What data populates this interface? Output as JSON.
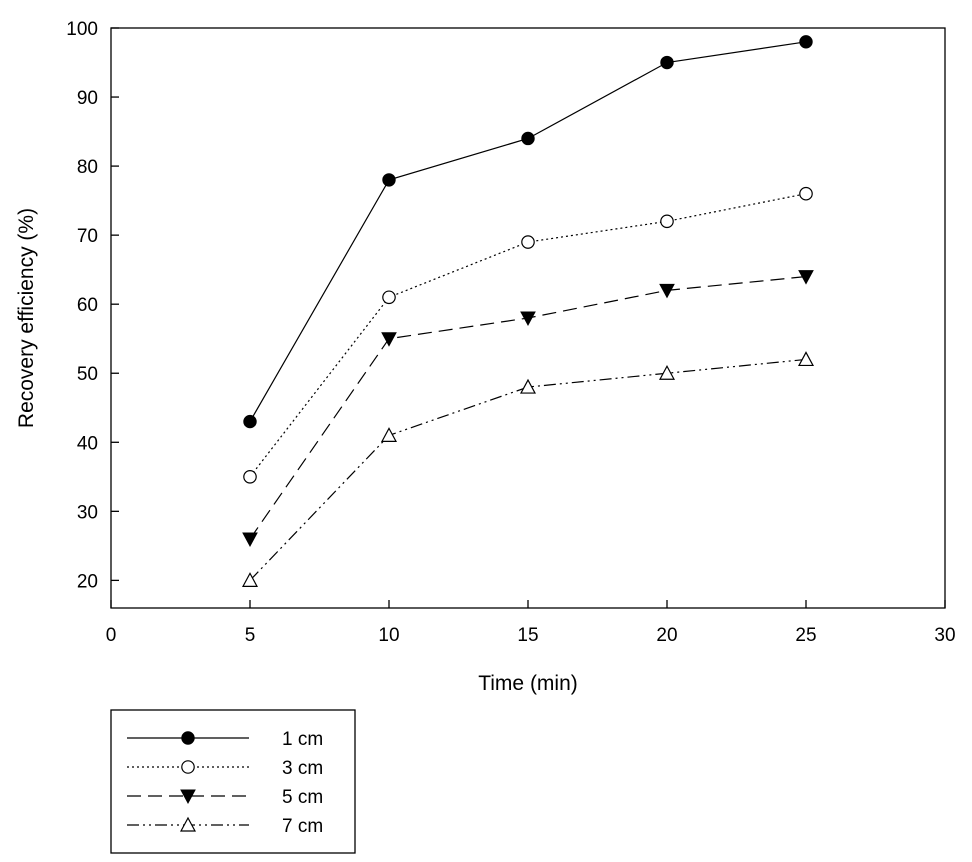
{
  "chart_data": {
    "type": "line",
    "title": "",
    "xlabel": "Time (min)",
    "ylabel": "Recovery efficiency (%)",
    "xlim": [
      0,
      30
    ],
    "ylim": [
      16,
      100
    ],
    "x_ticks": [
      0,
      5,
      10,
      15,
      20,
      25,
      30
    ],
    "y_ticks": [
      20,
      30,
      40,
      50,
      60,
      70,
      80,
      90,
      100
    ],
    "grid": false,
    "legend_position": "bottom-left, below plot",
    "x": [
      5,
      10,
      15,
      20,
      25
    ],
    "series": [
      {
        "name": "1 cm",
        "values": [
          43,
          78,
          84,
          95,
          98
        ],
        "line_style": "solid",
        "marker": "filled-circle"
      },
      {
        "name": "3 cm",
        "values": [
          35,
          61,
          69,
          72,
          76
        ],
        "line_style": "dotted",
        "marker": "open-circle"
      },
      {
        "name": "5 cm",
        "values": [
          26,
          55,
          58,
          62,
          64
        ],
        "line_style": "dashed",
        "marker": "filled-triangle-down"
      },
      {
        "name": "7 cm",
        "values": [
          20,
          41,
          48,
          50,
          52
        ],
        "line_style": "dash-dot-dot",
        "marker": "open-triangle-up"
      }
    ]
  },
  "colors": {
    "line": "#000000",
    "background": "#ffffff"
  }
}
